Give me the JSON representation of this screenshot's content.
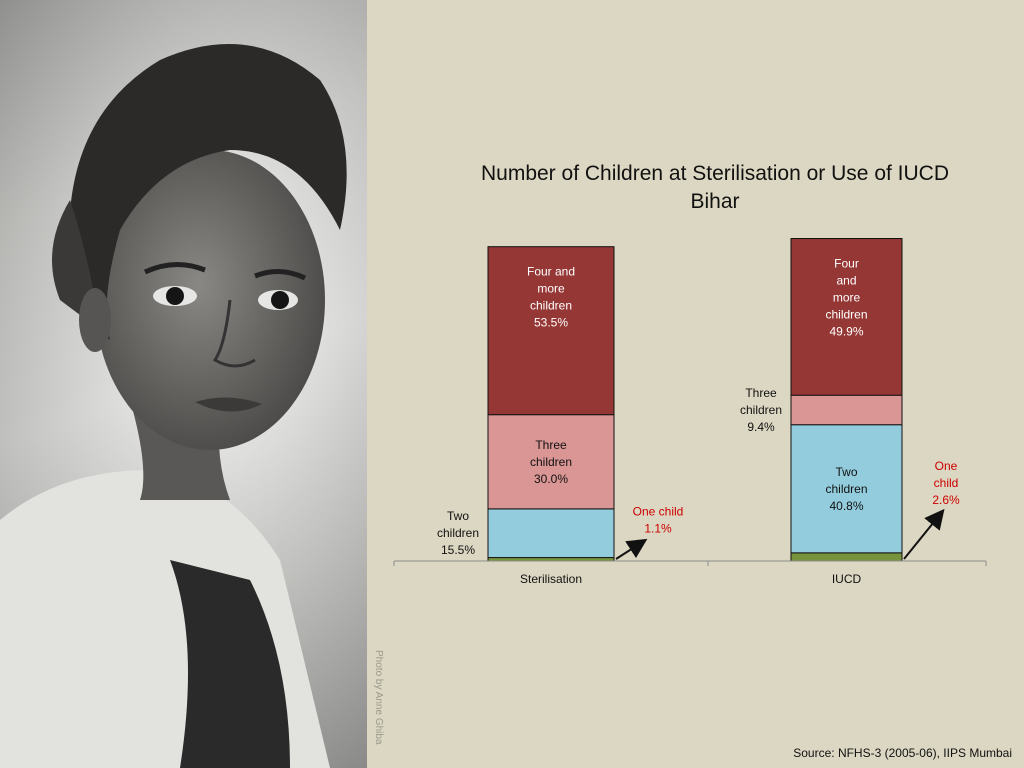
{
  "chart_data": {
    "type": "bar",
    "stacked": true,
    "title": "Number of Children at Sterilisation or Use of IUCD",
    "subtitle": "Bihar",
    "categories": [
      "Sterilisation",
      "IUCD"
    ],
    "series": [
      {
        "name": "One child",
        "values": [
          1.1,
          2.6
        ],
        "color": "#77933c"
      },
      {
        "name": "Two children",
        "values": [
          15.5,
          40.8
        ],
        "color": "#93cddd"
      },
      {
        "name": "Three children",
        "values": [
          30.0,
          9.4
        ],
        "color": "#d99694"
      },
      {
        "name": "Four and more children",
        "values": [
          53.5,
          49.9
        ],
        "color": "#953735"
      }
    ],
    "labels": [
      [
        {
          "lines": [
            "One child",
            "1.1%"
          ],
          "color": "#cc0000",
          "position": "outside-right",
          "arrow": true
        },
        {
          "lines": [
            "Two",
            "children",
            "15.5%"
          ],
          "color": "#111111",
          "position": "outside-left"
        },
        {
          "lines": [
            "Three",
            "children",
            "30.0%"
          ],
          "color": "#111111",
          "position": "inside"
        },
        {
          "lines": [
            "Four and",
            "more",
            "children",
            "53.5%"
          ],
          "color": "#ffffff",
          "position": "inside"
        }
      ],
      [
        {
          "lines": [
            "One",
            "child",
            "2.6%"
          ],
          "color": "#cc0000",
          "position": "outside-right",
          "arrow": true
        },
        {
          "lines": [
            "Two",
            "children",
            "40.8%"
          ],
          "color": "#111111",
          "position": "inside"
        },
        {
          "lines": [
            "Three",
            "children",
            "9.4%"
          ],
          "color": "#111111",
          "position": "outside-left"
        },
        {
          "lines": [
            "Four",
            "and",
            "more",
            "children",
            "49.9%"
          ],
          "color": "#ffffff",
          "position": "inside"
        }
      ]
    ],
    "ylim": [
      0,
      100
    ],
    "legend": "none",
    "grid": false
  },
  "photo_credit": "Photo by Anne Ghiba",
  "source": "Source: NFHS-3 (2005-06), IIPS Mumbai"
}
